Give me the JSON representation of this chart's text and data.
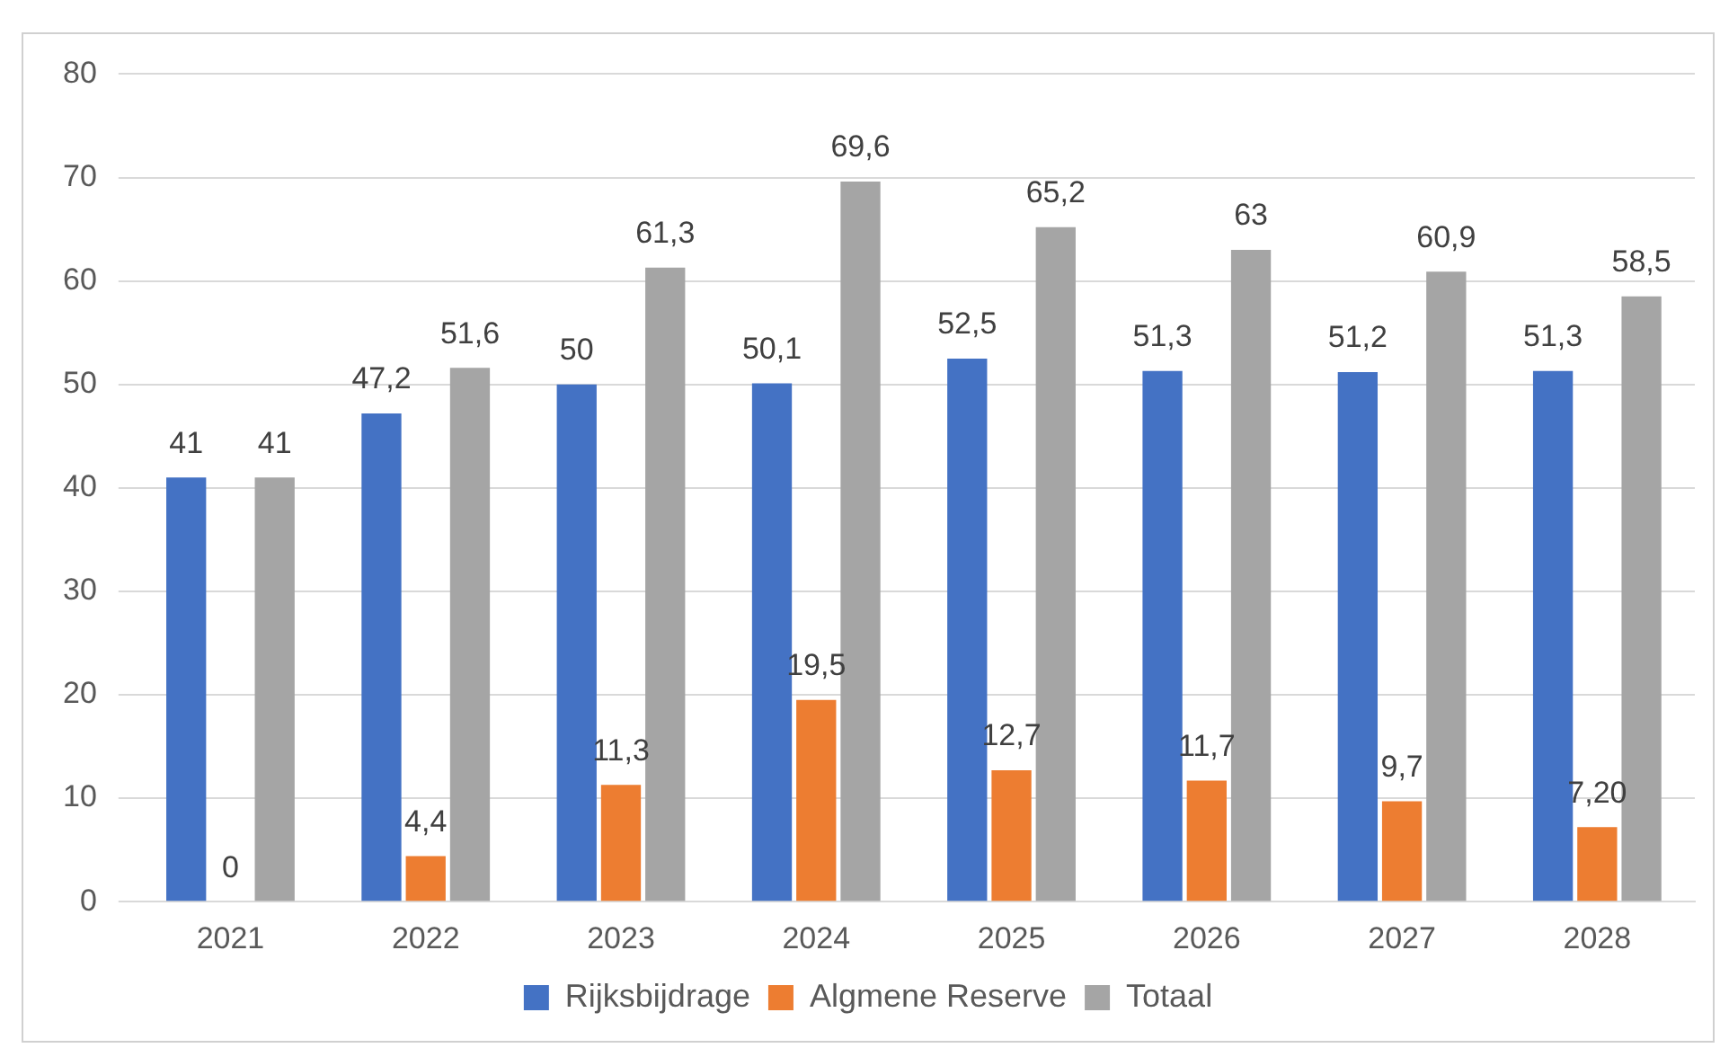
{
  "chart_data": {
    "type": "bar",
    "categories": [
      "2021",
      "2022",
      "2023",
      "2024",
      "2025",
      "2026",
      "2027",
      "2028"
    ],
    "series": [
      {
        "name": "Rijksbijdrage",
        "color": "#4472c4",
        "values": [
          41,
          47.2,
          50,
          50.1,
          52.5,
          51.3,
          51.2,
          51.3
        ],
        "value_labels": [
          "41",
          "47,2",
          "50",
          "50,1",
          "52,5",
          "51,3",
          "51,2",
          "51,3"
        ]
      },
      {
        "name": "Algmene Reserve",
        "color": "#ed7d31",
        "values": [
          0,
          4.4,
          11.3,
          19.5,
          12.7,
          11.7,
          9.7,
          7.2
        ],
        "value_labels": [
          "0",
          "4,4",
          "11,3",
          "19,5",
          "12,7",
          "11,7",
          "9,7",
          "7,20"
        ]
      },
      {
        "name": "Totaal",
        "color": "#a5a5a5",
        "values": [
          41,
          51.6,
          61.3,
          69.6,
          65.2,
          63,
          60.9,
          58.5
        ],
        "value_labels": [
          "41",
          "51,6",
          "61,3",
          "69,6",
          "65,2",
          "63",
          "60,9",
          "58,5"
        ]
      }
    ],
    "ylim": [
      0,
      80
    ],
    "yticks": [
      0,
      10,
      20,
      30,
      40,
      50,
      60,
      70,
      80
    ],
    "grid": "y",
    "legend": "bottom"
  }
}
